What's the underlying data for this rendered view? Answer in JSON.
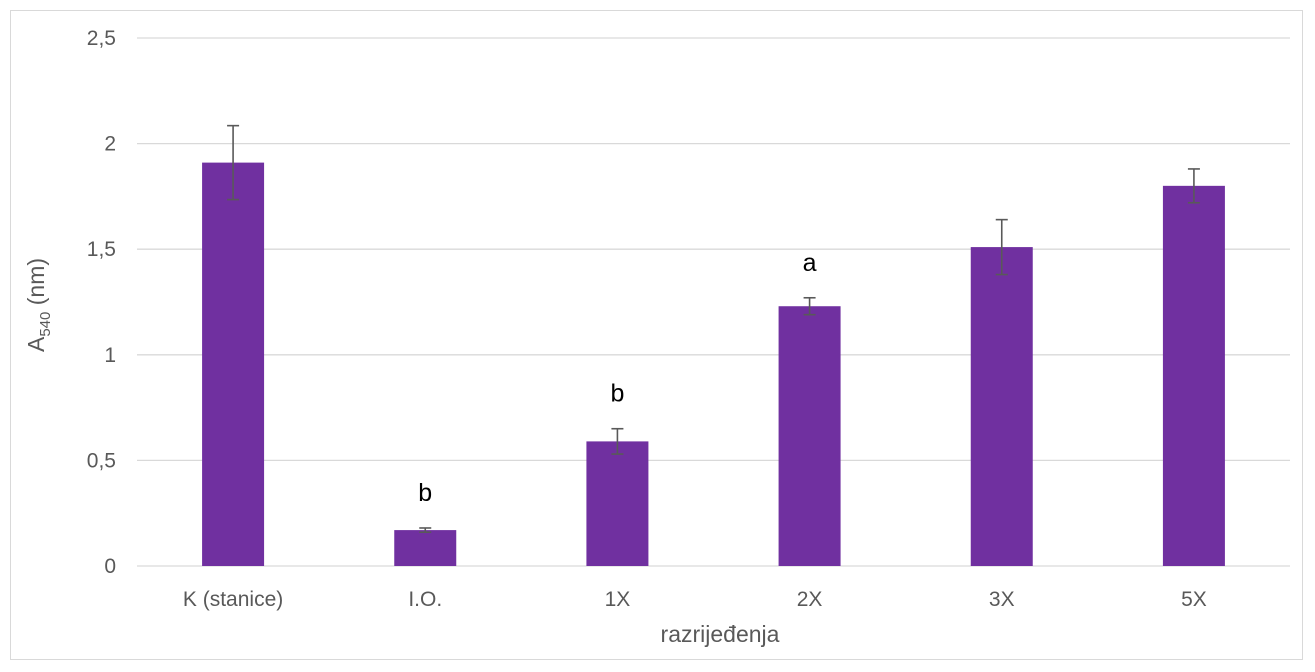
{
  "chart_data": {
    "type": "bar",
    "categories": [
      "K (stanice)",
      "I.O.",
      "1X",
      "2X",
      "3X",
      "5X"
    ],
    "values": [
      1.91,
      0.17,
      0.59,
      1.23,
      1.51,
      1.8
    ],
    "errors": [
      0.175,
      0.01,
      0.06,
      0.04,
      0.13,
      0.08
    ],
    "significance_labels": [
      "",
      "b",
      "b",
      "a",
      "",
      ""
    ],
    "xlabel": "razrijeđenja",
    "ylabel": {
      "base": "A",
      "subscript": "540",
      "suffix": " (nm)"
    },
    "ylim": [
      0,
      2.5
    ],
    "yticks": [
      0,
      0.5,
      1,
      1.5,
      2,
      2.5
    ],
    "ytick_labels": [
      "0",
      "0,5",
      "1",
      "1,5",
      "2",
      "2,5"
    ],
    "grid": true,
    "bar_color": "#7030a0",
    "grid_color": "#d9d9d9",
    "error_bar_color": "#595959"
  }
}
